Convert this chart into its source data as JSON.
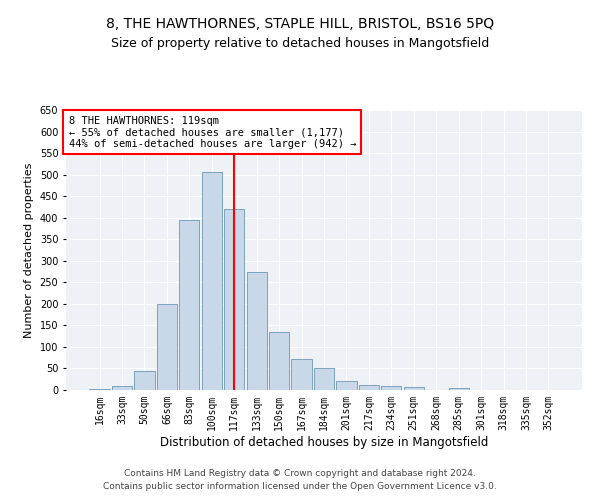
{
  "title1": "8, THE HAWTHORNES, STAPLE HILL, BRISTOL, BS16 5PQ",
  "title2": "Size of property relative to detached houses in Mangotsfield",
  "xlabel": "Distribution of detached houses by size in Mangotsfield",
  "ylabel": "Number of detached properties",
  "categories": [
    "16sqm",
    "33sqm",
    "50sqm",
    "66sqm",
    "83sqm",
    "100sqm",
    "117sqm",
    "133sqm",
    "150sqm",
    "167sqm",
    "184sqm",
    "201sqm",
    "217sqm",
    "234sqm",
    "251sqm",
    "268sqm",
    "285sqm",
    "301sqm",
    "318sqm",
    "335sqm",
    "352sqm"
  ],
  "bar_values": [
    3,
    10,
    45,
    200,
    395,
    505,
    420,
    275,
    135,
    73,
    50,
    20,
    12,
    10,
    7,
    0,
    5,
    0,
    0,
    0,
    0
  ],
  "bar_color": "#c8d8e8",
  "bar_edge_color": "#5588aa",
  "vline_x": 6,
  "vline_color": "red",
  "ylim": [
    0,
    650
  ],
  "yticks": [
    0,
    50,
    100,
    150,
    200,
    250,
    300,
    350,
    400,
    450,
    500,
    550,
    600,
    650
  ],
  "annotation_text": "8 THE HAWTHORNES: 119sqm\n← 55% of detached houses are smaller (1,177)\n44% of semi-detached houses are larger (942) →",
  "annotation_box_color": "white",
  "annotation_box_edge": "red",
  "footer1": "Contains HM Land Registry data © Crown copyright and database right 2024.",
  "footer2": "Contains public sector information licensed under the Open Government Licence v3.0.",
  "bg_color": "#eef2f7",
  "grid_color": "white",
  "title1_fontsize": 10,
  "title2_fontsize": 9,
  "xlabel_fontsize": 8.5,
  "ylabel_fontsize": 8,
  "tick_fontsize": 7,
  "annotation_fontsize": 7.5,
  "footer_fontsize": 6.5
}
